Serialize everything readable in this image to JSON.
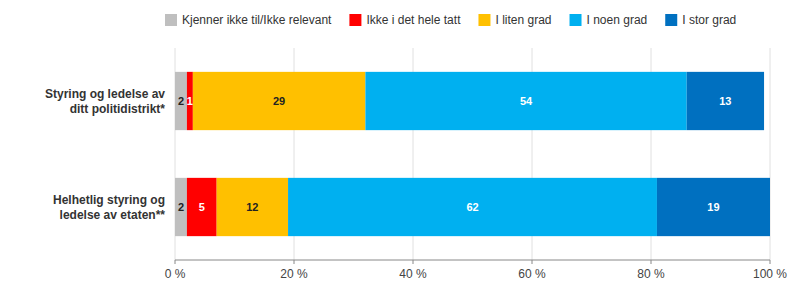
{
  "chart_data": {
    "type": "bar",
    "orientation": "horizontal",
    "stacked": true,
    "data_labels": true,
    "grid": true,
    "legend": "top",
    "categories": [
      "Styring og ledelse av\nditt politidistrikt*",
      "Helhetlig styring og\nledelse av etaten**"
    ],
    "series": [
      {
        "name": "Kjenner ikke til/Ikke relevant",
        "color": "#bfbfbf",
        "values": [
          2,
          2
        ]
      },
      {
        "name": "Ikke i det hele tatt",
        "color": "#ff0000",
        "values": [
          1,
          5
        ]
      },
      {
        "name": "I liten grad",
        "color": "#ffc000",
        "values": [
          29,
          12
        ]
      },
      {
        "name": "I noen grad",
        "color": "#00b0f0",
        "values": [
          54,
          62
        ]
      },
      {
        "name": "I stor grad",
        "color": "#0070c0",
        "values": [
          13,
          19
        ]
      }
    ],
    "xlim": [
      0,
      100
    ],
    "xticks": [
      {
        "value": 0,
        "label": "0 %"
      },
      {
        "value": 20,
        "label": "20 %"
      },
      {
        "value": 40,
        "label": "40 %"
      },
      {
        "value": 60,
        "label": "60 %"
      },
      {
        "value": 80,
        "label": "80 %"
      },
      {
        "value": 100,
        "label": "100 %"
      }
    ]
  }
}
